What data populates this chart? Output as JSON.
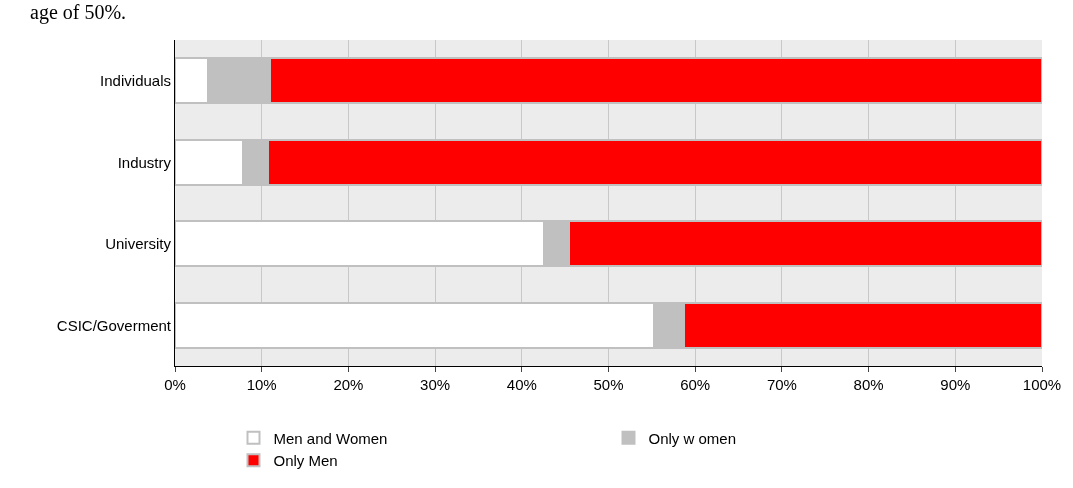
{
  "chart_data": {
    "type": "bar",
    "orientation": "horizontal",
    "stacked": true,
    "annotations": [
      "age of 50%."
    ],
    "categories": [
      "Individuals",
      "Industry",
      "University",
      "CSIC/Goverment"
    ],
    "series": [
      {
        "name": "Men and Women",
        "color": "#ffffff",
        "values": [
          3.8,
          7.9,
          42.6,
          55.2
        ]
      },
      {
        "name": "Only w omen",
        "color": "#c0c0c0",
        "values": [
          7.1,
          2.8,
          2.8,
          3.5
        ]
      },
      {
        "name": "Only Men",
        "color": "#ff0000",
        "values": [
          89.1,
          89.3,
          54.6,
          41.3
        ]
      }
    ],
    "xlim": [
      0,
      100
    ],
    "xticks": [
      {
        "value": 0,
        "label": "0%"
      },
      {
        "value": 10,
        "label": "10%"
      },
      {
        "value": 20,
        "label": "20%"
      },
      {
        "value": 30,
        "label": "30%"
      },
      {
        "value": 40,
        "label": "40%"
      },
      {
        "value": 50,
        "label": "50%"
      },
      {
        "value": 60,
        "label": "60%"
      },
      {
        "value": 70,
        "label": "70%"
      },
      {
        "value": 80,
        "label": "80%"
      },
      {
        "value": 90,
        "label": "90%"
      },
      {
        "value": 100,
        "label": "100%"
      }
    ],
    "grid": "x",
    "legend": "bottom"
  }
}
